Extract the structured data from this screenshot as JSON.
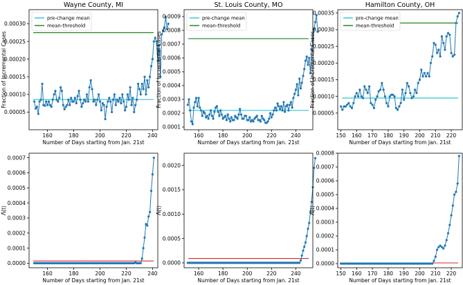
{
  "figure": {
    "colors": {
      "series": "#1f77b4",
      "mean": "#17becf",
      "threshold": "#007700",
      "lambda_threshold": "#d62728"
    }
  },
  "chart_data": [
    {
      "type": "line",
      "title": "Wayne County, MI",
      "xlabel": "Number of Days starting from Jan. 21st",
      "ylabel": "Fraction of Incremental Cases",
      "xlim": [
        146,
        244
      ],
      "ylim": [
        0.0,
        0.00034
      ],
      "xticks": [
        160,
        180,
        200,
        220,
        240
      ],
      "yticks": [
        5e-05,
        0.0001,
        0.00015,
        0.0002,
        0.00025,
        0.0003
      ],
      "ytick_labels": [
        "0.00005",
        "0.00010",
        "0.00015",
        "0.00020",
        "0.00025",
        "0.00030"
      ],
      "x_start": 150,
      "values": [
        8e-05,
        6e-05,
        6.5e-05,
        4.5e-05,
        8e-05,
        8.5e-05,
        0.00013,
        7e-05,
        6.8e-05,
        8e-05,
        7e-05,
        8e-05,
        7e-05,
        6.5e-05,
        8.5e-05,
        0.0001,
        0.00011,
        8.5e-05,
        8e-05,
        9e-05,
        0.00012,
        0.00011,
        7e-05,
        5.8e-05,
        6.5e-05,
        7e-05,
        8.5e-05,
        7e-05,
        9e-05,
        8e-05,
        8e-05,
        9e-05,
        7.5e-05,
        9.5e-05,
        0.00011,
        8.5e-05,
        6.5e-05,
        7.5e-05,
        8.5e-05,
        8e-05,
        0.0001,
        8e-05,
        0.00012,
        0.00014,
        0.000115,
        8e-05,
        8.5e-05,
        7e-05,
        8.5e-05,
        0.0001,
        8e-05,
        5.5e-05,
        7.5e-05,
        7e-05,
        3e-05,
        6.5e-05,
        8e-05,
        9e-05,
        8e-05,
        5e-05,
        8.5e-05,
        0.0001,
        7e-05,
        8.5e-05,
        8e-05,
        9e-05,
        7.5e-05,
        0.0001,
        8e-05,
        5.5e-05,
        6.5e-05,
        0.0001,
        8.5e-05,
        0.00012,
        7e-05,
        9e-05,
        5e-05,
        7e-05,
        8.5e-05,
        0.00013,
        0.000115,
        0.0001,
        0.00013,
        0.000115,
        0.00015,
        0.0001,
        0.00014,
        0.00012,
        0.00015,
        0.00018,
        0.0002,
        0.00025,
        0.00026,
        0.00025,
        0.000195,
        0.00024,
        0.00015,
        0.00027,
        0.00028,
        0.00029,
        0.00032,
        0.000285,
        0.0003
      ],
      "legend": [
        "pre-change mean",
        "mean-threshold"
      ],
      "legend_position": "upper-left",
      "hlines": [
        {
          "label": "pre-change mean",
          "y": 8.55e-05
        },
        {
          "label": "mean-threshold",
          "y": 0.000275
        }
      ]
    },
    {
      "type": "line",
      "title": "St. Louis County, MO",
      "xlabel": "Number of Days starting from Jan. 21st",
      "ylabel": "Fraction of Incremental Cases",
      "xlim": [
        148,
        254
      ],
      "ylim": [
        8e-05,
        0.00095
      ],
      "xticks": [
        160,
        180,
        200,
        220,
        240
      ],
      "yticks": [
        0.0001,
        0.0002,
        0.0003,
        0.0004,
        0.0005,
        0.0006,
        0.0007,
        0.0008,
        0.0009
      ],
      "ytick_labels": [
        "0.0001",
        "0.0002",
        "0.0003",
        "0.0004",
        "0.0005",
        "0.0006",
        "0.0007",
        "0.0008",
        "0.0009"
      ],
      "x_start": 151,
      "values": [
        0.00026,
        0.0003,
        0.00022,
        0.00014,
        0.00012,
        0.00024,
        0.00028,
        0.00031,
        0.00025,
        0.00031,
        0.00024,
        0.00022,
        0.00018,
        0.00021,
        0.0002,
        0.00017,
        0.00018,
        0.00016,
        0.00019,
        0.00022,
        0.00018,
        0.00016,
        0.00021,
        0.00024,
        0.00025,
        0.00021,
        0.00018,
        0.00022,
        0.00019,
        0.00016,
        0.00017,
        0.00018,
        0.00015,
        0.00019,
        0.00016,
        0.00014,
        0.00017,
        0.00015,
        0.00015,
        0.00018,
        0.00017,
        0.00016,
        0.00019,
        0.00023,
        0.00019,
        0.00016,
        0.00016,
        0.00018,
        0.00018,
        0.00015,
        0.00015,
        0.00017,
        0.00014,
        0.00015,
        0.00014,
        0.00016,
        0.00017,
        0.00018,
        0.00015,
        0.00015,
        0.00014,
        0.00018,
        0.00016,
        0.00015,
        0.00013,
        0.00013,
        0.00014,
        0.00016,
        0.0002,
        0.00017,
        0.00019,
        0.00022,
        0.00024,
        0.00022,
        0.00027,
        0.00025,
        0.00023,
        0.00025,
        0.00022,
        0.00028,
        0.00021,
        0.00025,
        0.00026,
        0.00022,
        0.00026,
        0.00028,
        0.00024,
        0.00031,
        0.00034,
        0.00037,
        0.00041,
        0.00033,
        0.00045,
        0.00038,
        0.00042,
        0.00047,
        0.00052,
        0.00058,
        0.00061,
        0.00055,
        0.0006,
        0.00049,
        0.00066,
        0.00074,
        0.00081,
        0.00086,
        0.00091,
        0.00079
      ],
      "legend": [
        "pre-change mean",
        "mean-threshold"
      ],
      "legend_position": "upper-left",
      "hlines": [
        {
          "label": "pre-change mean",
          "y": 0.00022
        },
        {
          "label": "mean-threshold",
          "y": 0.00074
        }
      ]
    },
    {
      "type": "line",
      "title": "Hamilton County, OH",
      "xlabel": "Number of Days starting from Jan. 21st",
      "ylabel": "Fraction of Incremental Cases",
      "xlim": [
        148,
        227
      ],
      "ylim": [
        0.0,
        0.00036
      ],
      "xticks": [
        150,
        160,
        170,
        180,
        190,
        200,
        210,
        220
      ],
      "yticks": [
        5e-05,
        0.0001,
        0.00015,
        0.0002,
        0.00025,
        0.0003,
        0.00035
      ],
      "ytick_labels": [
        "0.00005",
        "0.00010",
        "0.00015",
        "0.00020",
        "0.00025",
        "0.00030",
        "0.00035"
      ],
      "x_start": 150,
      "values": [
        7e-05,
        6e-05,
        7e-05,
        7e-05,
        7.5e-05,
        8e-05,
        7e-05,
        6.5e-05,
        8e-05,
        0.0001,
        0.00011,
        0.0001,
        0.00012,
        0.0001,
        9.5e-05,
        0.00013,
        0.00012,
        0.00011,
        0.00013,
        8e-05,
        7.5e-05,
        6.5e-05,
        9e-05,
        0.0001,
        0.000115,
        0.00012,
        0.00014,
        0.00012,
        0.0001,
        8e-05,
        7e-05,
        0.0001,
        0.000105,
        0.000105,
        0.0001,
        6.5e-05,
        6e-05,
        7e-05,
        8e-05,
        0.00012,
        9e-05,
        0.00011,
        0.00014,
        0.00013,
        0.00011,
        9.5e-05,
        0.0001,
        0.00012,
        0.00011,
        0.00014,
        0.00015,
        0.00018,
        0.00016,
        0.00017,
        0.00016,
        0.00017,
        0.00016,
        0.0002,
        0.00022,
        0.00026,
        0.000255,
        0.00023,
        0.00024,
        0.00022,
        0.00028,
        0.00026,
        0.00024,
        0.00028,
        0.00029,
        0.000285,
        0.00023,
        0.00022,
        0.000225,
        0.00032,
        0.00034,
        0.00035
      ],
      "legend": [
        "pre-change mean",
        "mean-threshold"
      ],
      "legend_position": "upper-left",
      "hlines": [
        {
          "label": "pre-change mean",
          "y": 9.5e-05
        },
        {
          "label": "mean-threshold",
          "y": 0.00032
        }
      ]
    },
    {
      "type": "line",
      "title": "",
      "xlabel": "Number of Days starting from Jan. 21st",
      "ylabel": "Λ̂(t)",
      "xlim": [
        146,
        244
      ],
      "ylim": [
        -3e-05,
        0.00073
      ],
      "xticks": [
        160,
        180,
        200,
        220,
        240
      ],
      "yticks": [
        0,
        0.0001,
        0.0002,
        0.0003,
        0.0004,
        0.0005,
        0.0006,
        0.0007
      ],
      "ytick_labels": [
        "0.0000",
        "0.0001",
        "0.0002",
        "0.0003",
        "0.0004",
        "0.0005",
        "0.0006",
        "0.0007"
      ],
      "x_start": 150,
      "values": [
        0,
        0,
        0,
        0,
        0,
        0,
        0,
        0,
        0,
        0,
        0,
        0,
        0,
        0,
        0,
        0,
        0,
        0,
        0,
        0,
        0,
        0,
        0,
        0,
        0,
        0,
        0,
        0,
        0,
        0,
        0,
        0,
        0,
        0,
        0,
        0,
        0,
        0,
        0,
        0,
        0,
        0,
        0,
        0,
        0,
        0,
        0,
        0,
        0,
        0,
        0,
        0,
        0,
        0,
        0,
        0,
        0,
        0,
        0,
        0,
        0,
        0,
        0,
        0,
        0,
        0,
        0,
        0,
        0,
        0,
        0,
        0,
        0,
        0,
        0,
        0,
        0,
        5e-06,
        0,
        0,
        0,
        0,
        3e-05,
        0.0001,
        0.00017,
        0.00026,
        0.00025,
        0.00031,
        0.00034,
        0.00048,
        0.00059,
        0.0007
      ],
      "hlines": [
        {
          "label": "threshold",
          "y": 1.5e-05
        }
      ]
    },
    {
      "type": "line",
      "title": "",
      "xlabel": "Number of Days starting from Jan. 21st",
      "ylabel": "Λ̂(t)",
      "xlim": [
        148,
        254
      ],
      "ylim": [
        -0.0001,
        0.00225
      ],
      "xticks": [
        160,
        180,
        200,
        220,
        240
      ],
      "yticks": [
        0,
        0.0005,
        0.001,
        0.0015,
        0.002
      ],
      "ytick_labels": [
        "0.0000",
        "0.0005",
        "0.0010",
        "0.0015",
        "0.0020"
      ],
      "x_start": 151,
      "values": [
        0,
        0,
        0,
        0,
        0,
        0,
        0,
        0,
        0,
        0,
        0,
        0,
        0,
        0,
        0,
        0,
        0,
        0,
        0,
        0,
        0,
        0,
        0,
        0,
        0,
        0,
        0,
        0,
        0,
        0,
        0,
        0,
        0,
        0,
        0,
        0,
        0,
        0,
        0,
        0,
        0,
        0,
        0,
        0,
        0,
        0,
        0,
        0,
        0,
        0,
        0,
        0,
        0,
        0,
        0,
        0,
        0,
        0,
        0,
        0,
        0,
        0,
        0,
        0,
        0,
        0,
        0,
        0,
        0,
        0,
        0,
        0,
        0,
        0,
        0,
        0,
        0,
        0,
        0,
        0,
        0,
        0,
        0,
        0,
        0,
        0,
        0,
        0,
        0,
        0,
        0,
        0,
        0,
        5e-05,
        0.00015,
        0.00025,
        0.00033,
        0.00042,
        0.00055,
        0.0007,
        0.00082,
        0.00105,
        0.00125,
        0.00155,
        0.00195,
        0.00215
      ],
      "hlines": [
        {
          "label": "threshold",
          "y": 9e-05
        }
      ]
    },
    {
      "type": "line",
      "title": "",
      "xlabel": "Number of Days starting from Jan. 21st",
      "ylabel": "Λ̂(t)",
      "xlim": [
        148,
        227
      ],
      "ylim": [
        -3e-05,
        0.0008
      ],
      "xticks": [
        150,
        160,
        170,
        180,
        190,
        200,
        210,
        220
      ],
      "yticks": [
        0,
        0.0001,
        0.0002,
        0.0003,
        0.0004,
        0.0005,
        0.0006,
        0.0007,
        0.0008
      ],
      "ytick_labels": [
        "0.0000",
        "0.0001",
        "0.0002",
        "0.0003",
        "0.0004",
        "0.0005",
        "0.0006",
        "0.0007",
        "0.0008"
      ],
      "x_start": 150,
      "values": [
        0,
        0,
        0,
        0,
        0,
        0,
        0,
        0,
        0,
        0,
        0,
        0,
        0,
        0,
        0,
        0,
        0,
        0,
        0,
        0,
        0,
        0,
        0,
        0,
        0,
        0,
        0,
        0,
        0,
        0,
        0,
        0,
        0,
        0,
        0,
        0,
        0,
        0,
        0,
        0,
        0,
        0,
        0,
        0,
        0,
        0,
        0,
        0,
        0,
        0,
        0,
        0,
        0,
        0,
        0,
        0,
        0,
        0,
        0,
        2e-05,
        5e-05,
        0.0001,
        0.00012,
        0.00013,
        0.00012,
        0.00011,
        0.00013,
        0.00017,
        0.00022,
        0.00028,
        0.00035,
        0.00042,
        0.0005,
        0.00052,
        0.00058,
        0.00078
      ],
      "hlines": [
        {
          "label": "threshold",
          "y": 5e-06
        }
      ]
    }
  ]
}
